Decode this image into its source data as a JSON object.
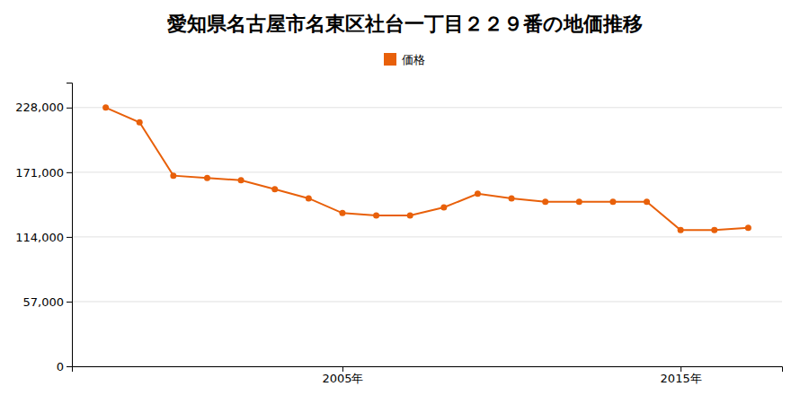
{
  "chart_data": {
    "type": "line",
    "title": "愛知県名古屋市名東区社台一丁目２２９番の地価推移",
    "x": [
      1998,
      1999,
      2000,
      2001,
      2002,
      2003,
      2004,
      2005,
      2006,
      2007,
      2008,
      2009,
      2010,
      2011,
      2012,
      2013,
      2014,
      2015,
      2016,
      2017
    ],
    "series": [
      {
        "name": "価格",
        "color": "#E8600A",
        "marker": "circle",
        "line_style": "solid",
        "values": [
          228000,
          215000,
          168000,
          166000,
          164000,
          156000,
          148000,
          135000,
          133000,
          133000,
          140000,
          152000,
          148000,
          145000,
          145000,
          145000,
          145000,
          120000,
          120000,
          122000
        ]
      }
    ],
    "xlim": [
      1997,
      2018
    ],
    "xticks": [
      {
        "value": 2005,
        "label": "2005年"
      },
      {
        "value": 2015,
        "label": "2015年"
      }
    ],
    "ylim": [
      0,
      250000
    ],
    "yticks": [
      0,
      {
        "value": 57000,
        "label": "57,000"
      },
      {
        "value": 114000,
        "label": "114,000"
      },
      {
        "value": 171000,
        "label": "171,000"
      },
      {
        "value": 228000,
        "label": "228,000"
      }
    ],
    "grid": true,
    "legend": "top"
  }
}
